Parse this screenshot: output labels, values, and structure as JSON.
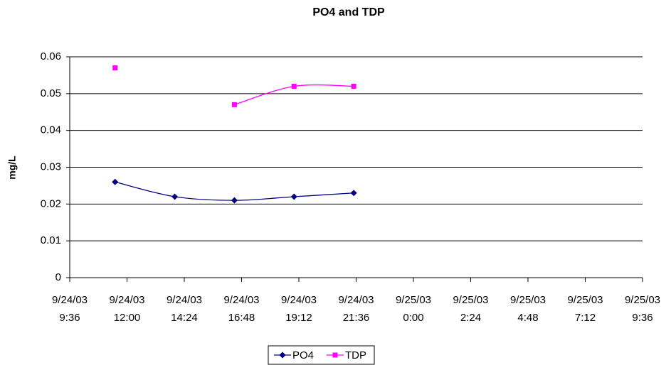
{
  "chart_data": {
    "type": "line",
    "title": "PO4 and TDP",
    "y_label": "mg/L",
    "x": [
      "9/24/03 11:30",
      "9/24/03 14:00",
      "9/24/03 16:30",
      "9/24/03 19:00",
      "9/24/03 21:30"
    ],
    "series": [
      {
        "name": "PO4",
        "color": "#000080",
        "marker": "diamond",
        "values": [
          0.026,
          0.022,
          0.021,
          0.022,
          0.023
        ]
      },
      {
        "name": "TDP",
        "color": "#ff00ff",
        "marker": "square",
        "values": [
          0.057,
          null,
          0.047,
          0.052,
          0.052
        ]
      }
    ],
    "xlim": [
      "9/24/03 9:36",
      "9/25/03 9:36"
    ],
    "xticks": [
      "9/24/03 9:36",
      "9/24/03 12:00",
      "9/24/03 14:24",
      "9/24/03 16:48",
      "9/24/03 19:12",
      "9/24/03 21:36",
      "9/25/03 0:00",
      "9/25/03 2:24",
      "9/25/03 4:48",
      "9/25/03 7:12",
      "9/25/03 9:36"
    ],
    "ylim": [
      0,
      0.06
    ],
    "yticks": [
      0,
      0.01,
      0.02,
      0.03,
      0.04,
      0.05,
      0.06
    ],
    "grid": true,
    "legend": "bottom"
  }
}
